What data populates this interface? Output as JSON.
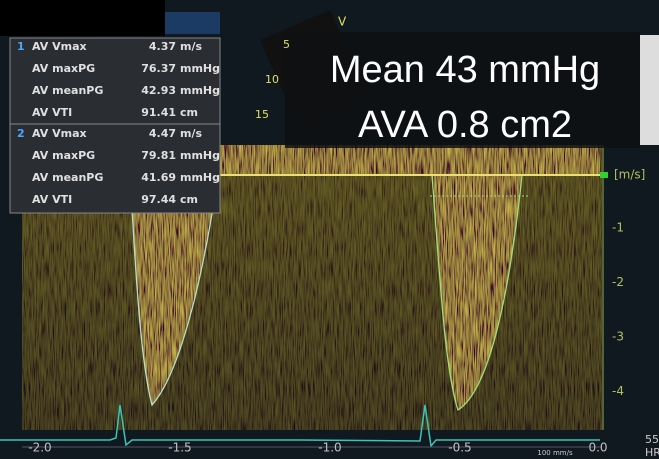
{
  "panel": {
    "groups": [
      {
        "index": "1",
        "rows": [
          {
            "label": "AV Vmax",
            "value": "4.37",
            "unit": "m/s"
          },
          {
            "label": "AV maxPG",
            "value": "76.37",
            "unit": "mmHg"
          },
          {
            "label": "AV meanPG",
            "value": "42.93",
            "unit": "mmHg"
          },
          {
            "label": "AV VTI",
            "value": "91.41",
            "unit": "cm"
          }
        ]
      },
      {
        "index": "2",
        "rows": [
          {
            "label": "AV Vmax",
            "value": "4.47",
            "unit": "m/s"
          },
          {
            "label": "AV maxPG",
            "value": "79.81",
            "unit": "mmHg"
          },
          {
            "label": "AV meanPG",
            "value": "41.69",
            "unit": "mmHg"
          },
          {
            "label": "AV VTI",
            "value": "97.44",
            "unit": "cm"
          }
        ]
      }
    ]
  },
  "overlay": [
    "Mean 43 mmHg",
    "AVA 0.8 cm2"
  ],
  "velocity_axis": {
    "unit": "[m/s]",
    "ticks": [
      "-1",
      "-2",
      "-3",
      "-4"
    ]
  },
  "time_axis": {
    "ticks": [
      "-2.0",
      "-1.5",
      "-1.0",
      "-0.5",
      "0.0"
    ]
  },
  "sweep_speed": "100 mm/s",
  "heart_rate": "55",
  "hr_label": "HR",
  "sector": {
    "depths": [
      "5",
      "10",
      "15"
    ],
    "mode": "V"
  }
}
